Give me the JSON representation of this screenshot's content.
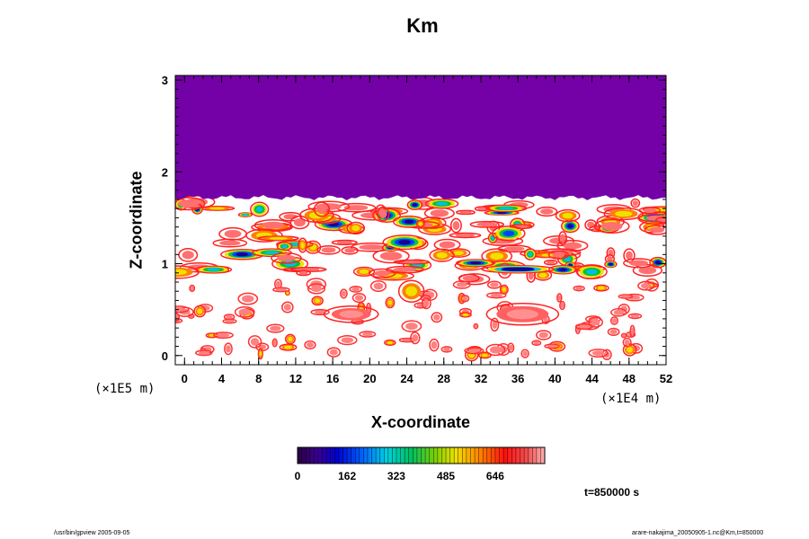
{
  "chart_data": {
    "type": "heatmap",
    "title": "Km",
    "xlabel": "X-coordinate",
    "ylabel": "Z-coordinate",
    "xlim": [
      -1,
      52
    ],
    "ylim": [
      -0.1,
      3.05
    ],
    "x_ticks": [
      "0",
      "4",
      "8",
      "12",
      "16",
      "20",
      "24",
      "28",
      "32",
      "36",
      "40",
      "44",
      "48",
      "52"
    ],
    "y_ticks": [
      "0",
      "1",
      "2",
      "3"
    ],
    "x_unit": "(×1E4 m)",
    "y_unit": "(×1E5 m)",
    "colorbar": {
      "range": [
        0,
        808
      ],
      "tick_labels": [
        "0",
        "162",
        "323",
        "485",
        "646"
      ],
      "colormap": "rainbow (purple → blue → cyan → green → yellow → red → pink)"
    },
    "regions": [
      {
        "description": "stable upper layer, z > ~1.7, uniform value",
        "z_range": [
          1.7,
          3.05
        ],
        "value": 0,
        "color": "#7400a8"
      },
      {
        "description": "turbulent band, z ~0.8–1.7, high values",
        "z_range": [
          0.8,
          1.7
        ]
      },
      {
        "description": "scattered patches below z ~0.8",
        "z_range": [
          0.0,
          0.8
        ]
      }
    ]
  },
  "annotations": {
    "time": "t=850000 s",
    "footer_left": "/usr/bin/gpview 2005-09-05",
    "footer_right": "arare-nakajima_20050905-1.nc@Km,t=850000"
  },
  "colors": {
    "purple_top": "#7400a8",
    "frame": "#000000"
  }
}
